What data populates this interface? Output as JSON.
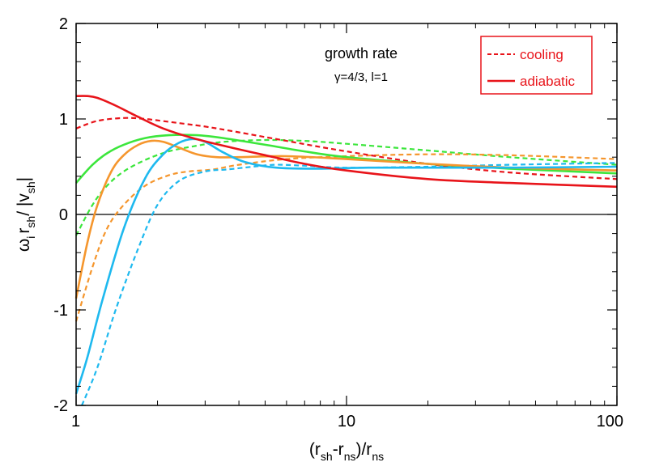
{
  "chart_data": {
    "type": "line",
    "title": "growth rate",
    "subtitle": "γ=4/3, l=1",
    "xscale": "log",
    "xlim": [
      1,
      100
    ],
    "ylim": [
      -2,
      2
    ],
    "x_ticks": [
      {
        "v": 1,
        "label": "1"
      },
      {
        "v": 10,
        "label": "10"
      },
      {
        "v": 100,
        "label": "100"
      }
    ],
    "y_ticks": [
      {
        "v": 2,
        "label": "2"
      },
      {
        "v": 1,
        "label": "1"
      },
      {
        "v": 0,
        "label": "0"
      },
      {
        "v": -1,
        "label": "-1"
      },
      {
        "v": -2,
        "label": "-2"
      }
    ],
    "xlabel": {
      "p1": "(r",
      "s1": "sh",
      "p2": "-r",
      "s2": "ns",
      "p3": ")/r",
      "s3": "ns"
    },
    "ylabel": {
      "w": "ω",
      "ws": "i",
      "r": "r",
      "rs": "sh",
      "mid": "/ |v",
      "vs": "sh",
      "end": "|"
    },
    "zero_line": true,
    "legend": {
      "position": "top-right",
      "entries": [
        {
          "label": "cooling",
          "style": "dashed",
          "color": "#e8141a"
        },
        {
          "label": "adiabatic",
          "style": "solid",
          "color": "#e8141a"
        }
      ]
    },
    "colors": {
      "red": "#e8141a",
      "green": "#3ce63c",
      "orange": "#f5962d",
      "cyan": "#1eb9ef"
    },
    "series": [
      {
        "color": "#3ce63c",
        "style": "dashed",
        "x": [
          1,
          1.15,
          1.3,
          1.5,
          1.8,
          2.2,
          2.8,
          3.5,
          5,
          7,
          10,
          20,
          40,
          100
        ],
        "y": [
          -0.22,
          0.1,
          0.3,
          0.45,
          0.57,
          0.66,
          0.72,
          0.76,
          0.78,
          0.77,
          0.74,
          0.67,
          0.6,
          0.52
        ]
      },
      {
        "color": "#f5962d",
        "style": "dashed",
        "x": [
          1,
          1.15,
          1.3,
          1.5,
          1.8,
          2.2,
          2.6,
          3.2,
          4,
          6,
          10,
          20,
          40,
          100
        ],
        "y": [
          -1.12,
          -0.55,
          -0.15,
          0.1,
          0.3,
          0.41,
          0.45,
          0.47,
          0.52,
          0.58,
          0.61,
          0.63,
          0.62,
          0.58
        ]
      },
      {
        "color": "#1eb9ef",
        "style": "dashed",
        "x": [
          1.05,
          1.2,
          1.4,
          1.7,
          2.0,
          2.4,
          3,
          3.6,
          4.5,
          5.5,
          7,
          10,
          20,
          40,
          100
        ],
        "y": [
          -2.0,
          -1.6,
          -1.0,
          -0.35,
          0.1,
          0.35,
          0.45,
          0.47,
          0.5,
          0.52,
          0.51,
          0.49,
          0.5,
          0.52,
          0.54
        ]
      },
      {
        "color": "#e8141a",
        "style": "dashed",
        "x": [
          1,
          1.2,
          1.5,
          1.8,
          2.2,
          3,
          4,
          6,
          10,
          20,
          40,
          100
        ],
        "y": [
          0.9,
          0.98,
          1.01,
          1.0,
          0.97,
          0.92,
          0.86,
          0.77,
          0.66,
          0.53,
          0.44,
          0.37
        ]
      },
      {
        "color": "#3ce63c",
        "style": "solid",
        "x": [
          1,
          1.15,
          1.3,
          1.5,
          1.8,
          2.2,
          2.8,
          3.5,
          5,
          7,
          10,
          20,
          40,
          100
        ],
        "y": [
          0.33,
          0.52,
          0.64,
          0.73,
          0.8,
          0.83,
          0.83,
          0.8,
          0.73,
          0.66,
          0.6,
          0.53,
          0.48,
          0.43
        ]
      },
      {
        "color": "#f5962d",
        "style": "solid",
        "x": [
          1,
          1.1,
          1.2,
          1.35,
          1.5,
          1.7,
          1.9,
          2.1,
          2.4,
          2.8,
          3.3,
          4,
          6,
          10,
          20,
          40,
          100
        ],
        "y": [
          -0.88,
          -0.3,
          0.1,
          0.45,
          0.62,
          0.73,
          0.77,
          0.76,
          0.7,
          0.63,
          0.6,
          0.6,
          0.61,
          0.58,
          0.53,
          0.49,
          0.46
        ]
      },
      {
        "color": "#1eb9ef",
        "style": "solid",
        "x": [
          1,
          1.1,
          1.25,
          1.5,
          1.8,
          2.1,
          2.4,
          2.7,
          3.0,
          3.5,
          4.2,
          5.5,
          8,
          12,
          20,
          40,
          100
        ],
        "y": [
          -1.88,
          -1.5,
          -0.9,
          -0.15,
          0.38,
          0.63,
          0.75,
          0.79,
          0.76,
          0.65,
          0.55,
          0.49,
          0.48,
          0.49,
          0.49,
          0.49,
          0.5
        ]
      },
      {
        "color": "#e8141a",
        "style": "solid",
        "x": [
          1,
          1.1,
          1.2,
          1.4,
          1.7,
          2.1,
          2.7,
          3.5,
          5,
          7,
          10,
          20,
          40,
          100
        ],
        "y": [
          1.24,
          1.24,
          1.22,
          1.14,
          1.02,
          0.9,
          0.8,
          0.72,
          0.62,
          0.53,
          0.46,
          0.37,
          0.33,
          0.29
        ]
      }
    ]
  }
}
